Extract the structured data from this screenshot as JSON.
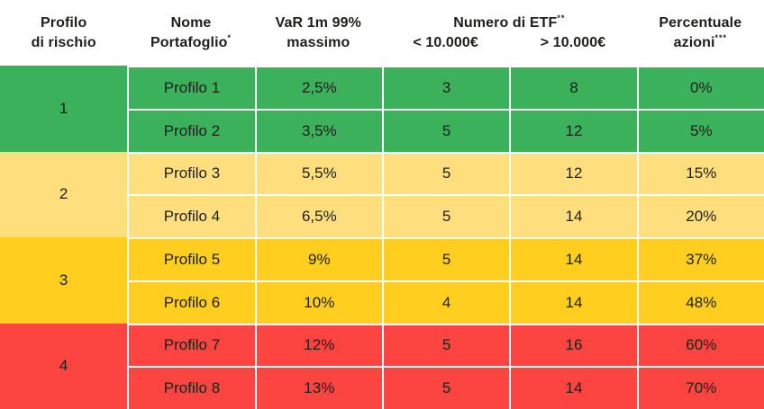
{
  "chart_data": {
    "type": "table",
    "language": "Italian",
    "text_color": "#1e1e1c",
    "background": "#ffffff",
    "divider_color": "#ffffff",
    "header": {
      "risk_line1": "Profilo",
      "risk_line2": "di rischio",
      "name_line1": "Nome",
      "name_line2": "Portafoglio",
      "name_sup": "*",
      "var_line1": "VaR 1m 99%",
      "var_line2": "massimo",
      "etf_title": "Numero di ETF",
      "etf_sup": "**",
      "etf_sub_under": "< 10.000€",
      "etf_sub_over": "> 10.000€",
      "equity_line1": "Percentuale",
      "equity_line2": "azioni",
      "equity_sup": "***"
    },
    "groups": [
      {
        "risk_level": "1",
        "color": "#3cb15c",
        "rows": [
          {
            "name": "Profilo 1",
            "var_max": "2,5%",
            "etf_under_10k": "3",
            "etf_over_10k": "8",
            "equity_pct": "0%"
          },
          {
            "name": "Profilo 2",
            "var_max": "3,5%",
            "etf_under_10k": "5",
            "etf_over_10k": "12",
            "equity_pct": "5%"
          }
        ]
      },
      {
        "risk_level": "2",
        "color": "#ffdf7d",
        "rows": [
          {
            "name": "Profilo 3",
            "var_max": "5,5%",
            "etf_under_10k": "5",
            "etf_over_10k": "12",
            "equity_pct": "15%"
          },
          {
            "name": "Profilo 4",
            "var_max": "6,5%",
            "etf_under_10k": "5",
            "etf_over_10k": "14",
            "equity_pct": "20%"
          }
        ]
      },
      {
        "risk_level": "3",
        "color": "#ffce1e",
        "rows": [
          {
            "name": "Profilo 5",
            "var_max": "9%",
            "etf_under_10k": "5",
            "etf_over_10k": "14",
            "equity_pct": "37%"
          },
          {
            "name": "Profilo 6",
            "var_max": "10%",
            "etf_under_10k": "4",
            "etf_over_10k": "14",
            "equity_pct": "48%"
          }
        ]
      },
      {
        "risk_level": "4",
        "color": "#fc4540",
        "rows": [
          {
            "name": "Profilo 7",
            "var_max": "12%",
            "etf_under_10k": "5",
            "etf_over_10k": "16",
            "equity_pct": "60%"
          },
          {
            "name": "Profilo 8",
            "var_max": "13%",
            "etf_under_10k": "5",
            "etf_over_10k": "14",
            "equity_pct": "70%"
          }
        ]
      }
    ]
  }
}
